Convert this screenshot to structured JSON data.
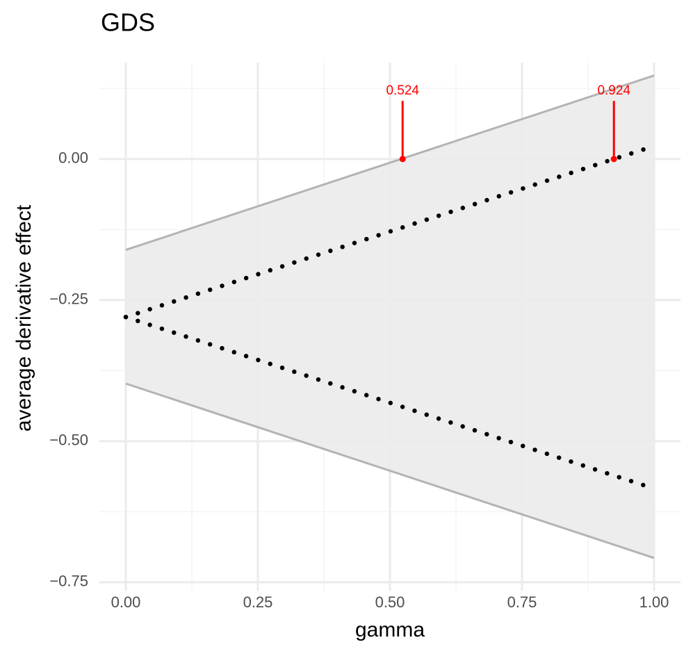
{
  "chart_data": {
    "type": "ribbon-line",
    "title": "GDS",
    "xlabel": "gamma",
    "ylabel": "average derivative effect",
    "ribbon": {
      "x": [
        0,
        1
      ],
      "upper": [
        -0.161,
        0.148
      ],
      "lower": [
        -0.398,
        -0.707
      ],
      "fill": "#ebebeb",
      "color": "#b3b3b3"
    },
    "lines": [
      {
        "x": [
          0,
          1
        ],
        "values": [
          -0.28,
          0.023
        ],
        "color": "#000000"
      },
      {
        "x": [
          0,
          1
        ],
        "values": [
          -0.28,
          -0.584
        ],
        "color": "#000000"
      }
    ],
    "annotations": [
      {
        "x": 0.524,
        "y": 0,
        "yend": 0.103
      },
      {
        "x": 0.924,
        "y": 0,
        "yend": 0.103
      }
    ],
    "annotation_color": "#ff0000",
    "xlim": [
      -0.05,
      1.05
    ],
    "ylim": [
      -0.765,
      0.171
    ],
    "xticks": [
      {
        "value": 0,
        "label": "0.00"
      },
      {
        "value": 0.25,
        "label": "0.25"
      },
      {
        "value": 0.5,
        "label": "0.50"
      },
      {
        "value": 0.75,
        "label": "0.75"
      },
      {
        "value": 1,
        "label": "1.00"
      }
    ],
    "yticks": [
      {
        "value": 0,
        "label": "0.00"
      },
      {
        "value": -0.25,
        "label": "−0.25"
      },
      {
        "value": -0.5,
        "label": "−0.50"
      },
      {
        "value": -0.75,
        "label": "−0.75"
      }
    ],
    "xminor": [
      0.125,
      0.375,
      0.625,
      0.875
    ],
    "yminor": [
      0.125,
      -0.125,
      -0.375,
      -0.625
    ],
    "grid": true
  }
}
